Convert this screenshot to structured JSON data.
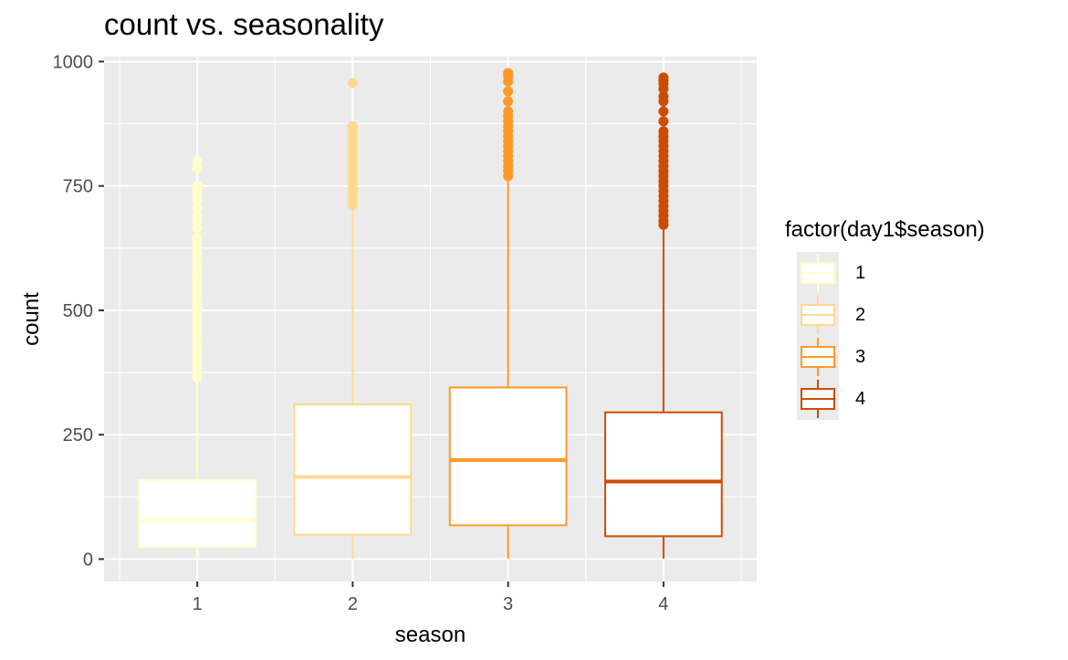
{
  "chart_data": {
    "type": "boxplot",
    "title": "count vs. seasonality",
    "xlabel": "season",
    "ylabel": "count",
    "ylim": [
      -45,
      1010
    ],
    "yticks": [
      0,
      250,
      500,
      750,
      1000
    ],
    "categories": [
      "1",
      "2",
      "3",
      "4"
    ],
    "legend": {
      "title": "factor(day1$season)",
      "position": "right",
      "entries": [
        "1",
        "2",
        "3",
        "4"
      ]
    },
    "colors": [
      "#FFFFCC",
      "#FED98E",
      "#FE9929",
      "#CC4C02"
    ],
    "boxes": [
      {
        "category": "1",
        "min": 1,
        "q1": 24,
        "median": 78,
        "q3": 159,
        "max": 360,
        "outliers": [
          365,
          375,
          385,
          395,
          405,
          415,
          425,
          435,
          445,
          455,
          465,
          475,
          485,
          495,
          505,
          515,
          525,
          535,
          545,
          555,
          565,
          575,
          585,
          595,
          605,
          615,
          625,
          635,
          645,
          665,
          680,
          690,
          705,
          720,
          730,
          740,
          750,
          785,
          800
        ]
      },
      {
        "category": "2",
        "min": 1,
        "q1": 49,
        "median": 165,
        "q3": 311,
        "max": 708,
        "outliers": [
          712,
          720,
          730,
          740,
          750,
          760,
          770,
          780,
          790,
          800,
          810,
          820,
          830,
          840,
          850,
          860,
          870,
          957
        ]
      },
      {
        "category": "3",
        "min": 1,
        "q1": 68,
        "median": 199,
        "q3": 345,
        "max": 765,
        "outliers": [
          770,
          780,
          790,
          800,
          810,
          820,
          830,
          840,
          850,
          860,
          870,
          880,
          890,
          900,
          920,
          940,
          960,
          970,
          977
        ]
      },
      {
        "category": "4",
        "min": 1,
        "q1": 46,
        "median": 156,
        "q3": 295,
        "max": 668,
        "outliers": [
          672,
          680,
          690,
          700,
          710,
          720,
          730,
          740,
          750,
          760,
          770,
          780,
          790,
          800,
          810,
          820,
          830,
          840,
          850,
          860,
          880,
          900,
          920,
          930,
          945,
          955,
          962,
          968
        ]
      }
    ],
    "grid": true
  }
}
